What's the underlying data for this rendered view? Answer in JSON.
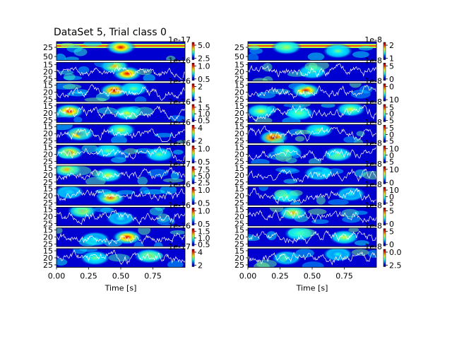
{
  "figure": {
    "title": "DataSet 5, Trial class 0",
    "left_offset_labels": [
      "1e-17",
      "1e-16",
      "1e-16",
      "1e-16",
      "1e-16",
      "1e-16",
      "1e-17",
      "1e-16",
      "1e-16",
      "1e-16",
      "1e-17"
    ],
    "right_offset_labels": [
      "1e-8",
      "1e-8",
      "1e-8",
      "1e-8",
      "1e-8",
      "1e-8",
      "1e-8",
      "1e-8",
      "1e-8",
      "1e-8",
      "1e-8"
    ],
    "colors": {
      "spectrogram_cmap": "jet",
      "signal_line": "#ffffff",
      "frame": "#000000"
    }
  },
  "chart_data": [
    {
      "type": "heatmap",
      "column": "left",
      "xlabel": "Time [s]",
      "xlim": [
        0,
        1
      ],
      "x_ticks": [
        "0.00",
        "0.25",
        "0.50",
        "0.75"
      ],
      "rows": [
        {
          "y_ticks": [
            "25",
            "50"
          ],
          "colorbar_ticks": [
            "5.0",
            "2.5"
          ],
          "overlay": false,
          "hotspots": [
            [
              0.5,
              0.3,
              0.9
            ]
          ]
        },
        {
          "y_ticks": [
            "15",
            "20",
            "25"
          ],
          "colorbar_ticks": [
            "1.0",
            "0.5"
          ],
          "overlay": true,
          "hotspots": [
            [
              0.55,
              0.6,
              0.9
            ],
            [
              0.45,
              0.2,
              0.7
            ]
          ]
        },
        {
          "y_ticks": [
            "15",
            "20",
            "25"
          ],
          "colorbar_ticks": [
            "2",
            "1"
          ],
          "overlay": true,
          "hotspots": [
            [
              0.45,
              0.4,
              0.95
            ],
            [
              0.6,
              0.3,
              0.5
            ]
          ]
        },
        {
          "y_ticks": [
            "15",
            "20",
            "25"
          ],
          "colorbar_ticks": [
            "1.5",
            "1.0",
            "0.5"
          ],
          "overlay": true,
          "hotspots": [
            [
              0.1,
              0.4,
              0.9
            ],
            [
              0.55,
              0.5,
              0.6
            ]
          ]
        },
        {
          "y_ticks": [
            "15",
            "20",
            "25"
          ],
          "colorbar_ticks": [
            "4",
            "2"
          ],
          "overlay": true,
          "hotspots": [
            [
              0.18,
              0.5,
              0.9
            ],
            [
              0.5,
              0.3,
              0.6
            ]
          ]
        },
        {
          "y_ticks": [
            "15",
            "20",
            "25"
          ],
          "colorbar_ticks": [
            "1.0",
            "0.5"
          ],
          "overlay": true,
          "hotspots": [
            [
              0.1,
              0.4,
              0.8
            ],
            [
              0.4,
              0.3,
              0.5
            ],
            [
              0.8,
              0.5,
              0.5
            ]
          ]
        },
        {
          "y_ticks": [
            "15",
            "20",
            "25"
          ],
          "colorbar_ticks": [
            "7.5",
            "5.0",
            "2.5"
          ],
          "overlay": true,
          "hotspots": [
            [
              0.08,
              0.2,
              0.7
            ],
            [
              0.4,
              0.5,
              0.6
            ]
          ]
        },
        {
          "y_ticks": [
            "15",
            "20",
            "25"
          ],
          "colorbar_ticks": [
            "1.0",
            "0.5"
          ],
          "overlay": true,
          "hotspots": [
            [
              0.42,
              0.6,
              0.8
            ],
            [
              0.1,
              0.3,
              0.4
            ]
          ]
        },
        {
          "y_ticks": [
            "15",
            "20",
            "25"
          ],
          "colorbar_ticks": [
            "1.0",
            "0.5"
          ],
          "overlay": true,
          "hotspots": [
            [
              0.2,
              0.2,
              0.7
            ],
            [
              0.5,
              0.6,
              0.4
            ]
          ]
        },
        {
          "y_ticks": [
            "15",
            "20",
            "25"
          ],
          "colorbar_ticks": [
            "1.5",
            "1.0",
            "0.5"
          ],
          "overlay": true,
          "hotspots": [
            [
              0.55,
              0.5,
              0.9
            ],
            [
              0.3,
              0.6,
              0.4
            ]
          ]
        },
        {
          "y_ticks": [
            "15",
            "20",
            "25"
          ],
          "colorbar_ticks": [
            "4",
            "2"
          ],
          "overlay": true,
          "hotspots": [
            [
              0.72,
              0.4,
              0.7
            ],
            [
              0.3,
              0.5,
              0.5
            ]
          ]
        }
      ]
    },
    {
      "type": "heatmap",
      "column": "right",
      "xlabel": "Time [s]",
      "xlim": [
        0,
        1
      ],
      "x_ticks": [
        "0.00",
        "0.25",
        "0.50",
        "0.75"
      ],
      "rows": [
        {
          "y_ticks": [
            "25",
            "50"
          ],
          "colorbar_ticks": [
            "2",
            "1"
          ],
          "overlay": false,
          "hotspots": [
            [
              0.3,
              0.3,
              0.6
            ],
            [
              0.7,
              0.5,
              0.5
            ]
          ]
        },
        {
          "y_ticks": [
            "15",
            "20",
            "25"
          ],
          "colorbar_ticks": [
            "5",
            "0"
          ],
          "overlay": true,
          "hotspots": [
            [
              0.5,
              0.5,
              0.5
            ]
          ]
        },
        {
          "y_ticks": [
            "15",
            "20",
            "25"
          ],
          "colorbar_ticks": [
            "0",
            "10"
          ],
          "overlay": true,
          "hotspots": [
            [
              0.45,
              0.4,
              0.9
            ]
          ]
        },
        {
          "y_ticks": [
            "15",
            "20",
            "25"
          ],
          "colorbar_ticks": [
            "5",
            "0",
            "5"
          ],
          "overlay": true,
          "hotspots": [
            [
              0.1,
              0.4,
              0.6
            ],
            [
              0.4,
              0.5,
              0.6
            ],
            [
              0.8,
              0.3,
              0.6
            ]
          ]
        },
        {
          "y_ticks": [
            "15",
            "20",
            "25"
          ],
          "colorbar_ticks": [
            "5",
            "0",
            "5"
          ],
          "overlay": true,
          "hotspots": [
            [
              0.2,
              0.7,
              1.0
            ],
            [
              0.55,
              0.3,
              0.5
            ]
          ]
        },
        {
          "y_ticks": [
            "15",
            "20",
            "25"
          ],
          "colorbar_ticks": [
            "10",
            "0",
            "5"
          ],
          "overlay": true,
          "hotspots": [
            [
              0.3,
              0.3,
              0.5
            ],
            [
              0.7,
              0.5,
              0.5
            ]
          ]
        },
        {
          "y_ticks": [
            "15",
            "20",
            "25"
          ],
          "colorbar_ticks": [
            "10",
            "0"
          ],
          "overlay": true,
          "hotspots": [
            [
              0.55,
              0.4,
              0.4
            ]
          ]
        },
        {
          "y_ticks": [
            "15",
            "20",
            "25"
          ],
          "colorbar_ticks": [
            "10",
            "0",
            "5"
          ],
          "overlay": true,
          "hotspots": [
            [
              0.3,
              0.5,
              0.5
            ],
            [
              0.8,
              0.4,
              0.4
            ]
          ]
        },
        {
          "y_ticks": [
            "15",
            "20",
            "25"
          ],
          "colorbar_ticks": [
            "5",
            "0"
          ],
          "overlay": true,
          "hotspots": [
            [
              0.35,
              0.3,
              0.7
            ]
          ]
        },
        {
          "y_ticks": [
            "15",
            "20",
            "25"
          ],
          "colorbar_ticks": [
            "5",
            "0"
          ],
          "overlay": true,
          "hotspots": [
            [
              0.4,
              0.3,
              0.5
            ],
            [
              0.75,
              0.5,
              0.6
            ]
          ]
        },
        {
          "y_ticks": [
            "15",
            "20",
            "25"
          ],
          "colorbar_ticks": [
            "0.0",
            "2.5"
          ],
          "overlay": true,
          "hotspots": [
            [
              0.3,
              0.5,
              0.4
            ],
            [
              0.7,
              0.3,
              0.4
            ]
          ]
        }
      ]
    }
  ]
}
